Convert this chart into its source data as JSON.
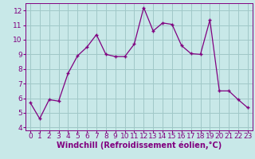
{
  "x": [
    0,
    1,
    2,
    3,
    4,
    5,
    6,
    7,
    8,
    9,
    10,
    11,
    12,
    13,
    14,
    15,
    16,
    17,
    18,
    19,
    20,
    21,
    22,
    23
  ],
  "y": [
    5.7,
    4.6,
    5.9,
    5.8,
    7.7,
    8.9,
    9.5,
    10.35,
    9.0,
    8.85,
    8.85,
    9.7,
    12.2,
    10.6,
    11.15,
    11.05,
    9.6,
    9.05,
    9.0,
    11.35,
    6.5,
    6.5,
    5.9,
    5.35
  ],
  "line_color": "#800080",
  "marker": "+",
  "bg_color": "#c8e8e8",
  "grid_color": "#a0c8c8",
  "xlabel": "Windchill (Refroidissement éolien,°C)",
  "xlim": [
    -0.5,
    23.5
  ],
  "ylim": [
    3.8,
    12.5
  ],
  "yticks": [
    4,
    5,
    6,
    7,
    8,
    9,
    10,
    11,
    12
  ],
  "xticks": [
    0,
    1,
    2,
    3,
    4,
    5,
    6,
    7,
    8,
    9,
    10,
    11,
    12,
    13,
    14,
    15,
    16,
    17,
    18,
    19,
    20,
    21,
    22,
    23
  ],
  "axis_label_color": "#800080",
  "tick_label_color": "#800080",
  "label_fontsize": 7.0,
  "tick_fontsize": 6.5
}
